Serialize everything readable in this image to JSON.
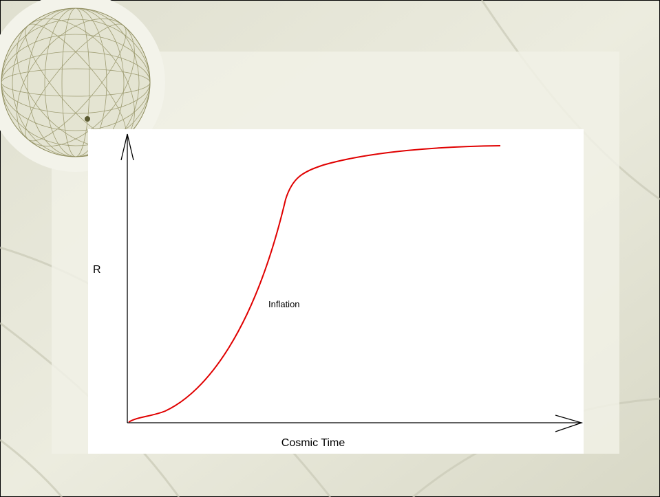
{
  "diagram": {
    "y_label": "R",
    "annotation": "Inflation",
    "x_label": "Cosmic Time"
  }
}
